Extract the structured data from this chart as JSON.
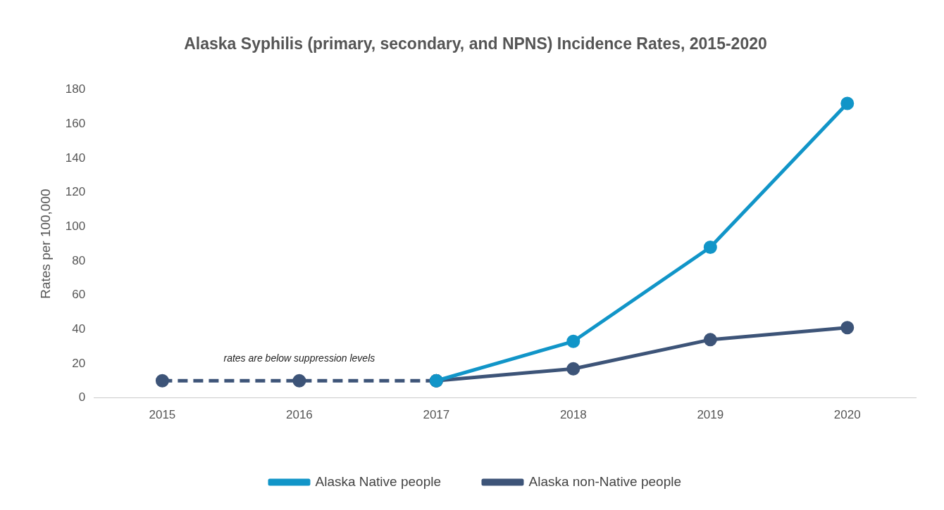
{
  "chart_data": {
    "type": "line",
    "title": "Alaska Syphilis (primary, secondary, and NPNS) Incidence Rates, 2015-2020",
    "ylabel": "Rates per 100,000",
    "categories": [
      "2015",
      "2016",
      "2017",
      "2018",
      "2019",
      "2020"
    ],
    "series": [
      {
        "name": "Alaska Native people",
        "color": "#1195c8",
        "values": [
          null,
          null,
          10,
          33,
          88,
          172
        ]
      },
      {
        "name": "Alaska non-Native people",
        "color": "#3d5478",
        "values": [
          null,
          null,
          10,
          17,
          34,
          41
        ]
      },
      {
        "color": "#3d5478",
        "line_style": "dashed",
        "values": [
          10,
          10,
          10,
          null,
          null,
          null
        ]
      }
    ],
    "ylim": [
      0,
      180
    ],
    "yticks": [
      0,
      20,
      40,
      60,
      80,
      100,
      120,
      140,
      160,
      180
    ],
    "annotations": [
      "rates are below suppression levels"
    ],
    "marker": "circle",
    "grid": false,
    "legend": "bottom"
  }
}
